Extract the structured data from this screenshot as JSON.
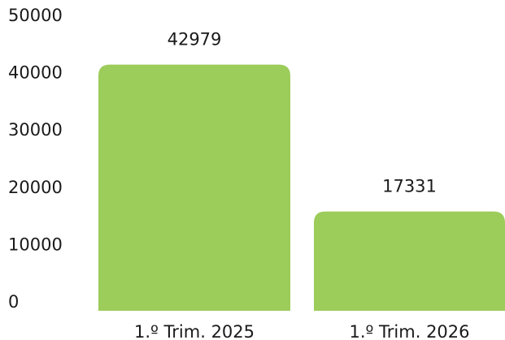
{
  "chart_data": {
    "type": "bar",
    "categories": [
      "1.º Trim. 2025",
      "1.º Trim. 2026"
    ],
    "values": [
      42979,
      17331
    ],
    "data_labels": [
      "42979",
      "17331"
    ],
    "ylim": [
      0,
      50000
    ],
    "yticks": [
      "0",
      "10000",
      "20000",
      "30000",
      "40000",
      "50000"
    ],
    "grid": false,
    "bar_color": "#9ccc5a",
    "title": "",
    "xlabel": "",
    "ylabel": ""
  }
}
